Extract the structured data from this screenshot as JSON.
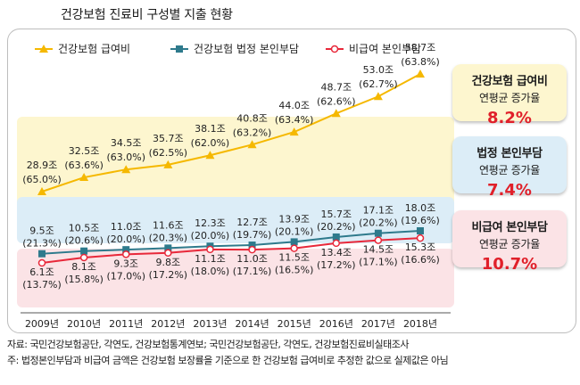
{
  "title": "건강보험 진료비 구성별 지출 현황",
  "chart_data": {
    "type": "line",
    "categories": [
      "2009년",
      "2010년",
      "2011년",
      "2012년",
      "2013년",
      "2014년",
      "2015년",
      "2016년",
      "2017년",
      "2018년"
    ],
    "series": [
      {
        "name": "건강보험 급여비",
        "color": "#f5b800",
        "marker": "triangle",
        "values": [
          28.9,
          32.5,
          34.5,
          35.7,
          38.1,
          40.8,
          44.0,
          48.7,
          53.0,
          58.7
        ],
        "value_labels": [
          "28.9조",
          "32.5조",
          "34.5조",
          "35.7조",
          "38.1조",
          "40.8조",
          "44.0조",
          "48.7조",
          "53.0조",
          "58.7조"
        ],
        "share_labels": [
          "(65.0%)",
          "(63.6%)",
          "(63.0%)",
          "(62.5%)",
          "(62.0%)",
          "(63.2%)",
          "(63.4%)",
          "(62.6%)",
          "(62.7%)",
          "(63.8%)"
        ]
      },
      {
        "name": "건강보험 법정 본인부담",
        "color": "#2e7a8c",
        "marker": "square",
        "values": [
          9.5,
          10.5,
          11.0,
          11.6,
          12.3,
          12.7,
          13.9,
          15.7,
          17.1,
          18.0
        ],
        "value_labels": [
          "9.5조",
          "10.5조",
          "11.0조",
          "11.6조",
          "12.3조",
          "12.7조",
          "13.9조",
          "15.7조",
          "17.1조",
          "18.0조"
        ],
        "share_labels": [
          "(21.3%)",
          "(20.6%)",
          "(20.0%)",
          "(20.3%)",
          "(20.0%)",
          "(19.7%)",
          "(20.1%)",
          "(20.2%)",
          "(20.2%)",
          "(19.6%)"
        ]
      },
      {
        "name": "비급여 본인부담",
        "color": "#e8283a",
        "marker": "circle",
        "values": [
          6.1,
          8.1,
          9.3,
          9.8,
          11.1,
          11.0,
          11.5,
          13.4,
          14.5,
          15.3
        ],
        "value_labels": [
          "6.1조",
          "8.1조",
          "9.3조",
          "9.8조",
          "11.1조",
          "11.0조",
          "11.5조",
          "13.4조",
          "14.5조",
          "15.3조"
        ],
        "share_labels": [
          "(13.7%)",
          "(15.8%)",
          "(17.0%)",
          "(17.2%)",
          "(18.0%)",
          "(17.1%)",
          "(16.5%)",
          "(17.2%)",
          "(17.1%)",
          "(16.6%)"
        ]
      }
    ]
  },
  "badges": [
    {
      "name": "건강보험 급여비",
      "sub": "연평균 증가율",
      "value": "8.2%",
      "bg": "#fdf6cf"
    },
    {
      "name": "법정 본인부담",
      "sub": "연평균 증가율",
      "value": "7.4%",
      "bg": "#dcedf7"
    },
    {
      "name": "비급여 본인부담",
      "sub": "연평균 증가율",
      "value": "10.7%",
      "bg": "#fbe3e6"
    }
  ],
  "footnotes": {
    "source": "자료: 국민건강보험공단, 각연도, 건강보험통계연보; 국민건강보험공단, 각연도, 건강보험진료비실태조사",
    "note": "주: 법정본인부담과 비급여 금액은 건강보험 보장률을 기준으로 한 건강보험 급여비로 추정한 값으로 실제값은 아님"
  }
}
